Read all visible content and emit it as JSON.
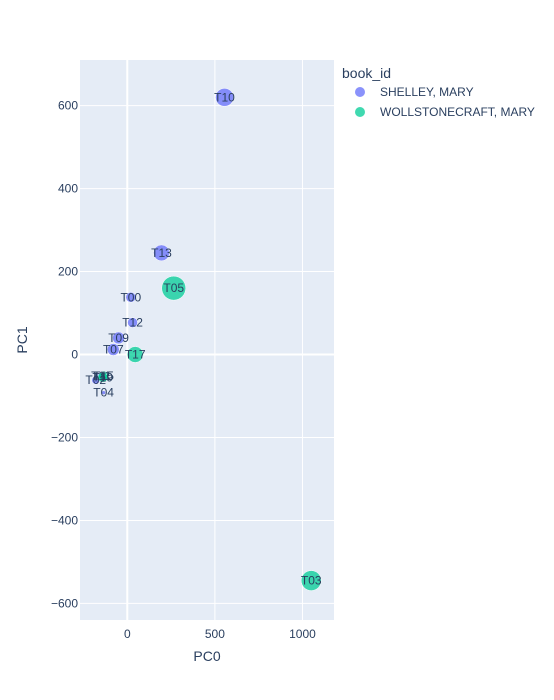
{
  "chart_data": {
    "type": "scatter",
    "xlabel": "PC0",
    "ylabel": "PC1",
    "xlim": [
      -270,
      1180
    ],
    "ylim": [
      -640,
      710
    ],
    "xticks": [
      0,
      500,
      1000
    ],
    "yticks": [
      -600,
      -400,
      -200,
      0,
      200,
      400,
      600
    ],
    "xtick_labels": [
      "0",
      "500",
      "1000"
    ],
    "ytick_labels": [
      "−600",
      "−400",
      "−200",
      "0",
      "200",
      "400",
      "600"
    ],
    "legend": {
      "title": "book_id",
      "placement": "top-right"
    },
    "series": [
      {
        "name": "SHELLEY, MARY",
        "color": "#636efa",
        "points": [
          {
            "label": "T10",
            "x": 555,
            "y": 620,
            "size": 18
          },
          {
            "label": "T13",
            "x": 195,
            "y": 245,
            "size": 16
          },
          {
            "label": "T00",
            "x": 20,
            "y": 138,
            "size": 10
          },
          {
            "label": "T12",
            "x": 30,
            "y": 77,
            "size": 10
          },
          {
            "label": "T09",
            "x": -50,
            "y": 40,
            "size": 12
          },
          {
            "label": "T07",
            "x": -80,
            "y": 12,
            "size": 12
          },
          {
            "label": "T11",
            "x": -150,
            "y": -52,
            "size": 8
          },
          {
            "label": "T02",
            "x": -180,
            "y": -62,
            "size": 8
          },
          {
            "label": "T04",
            "x": -135,
            "y": -92,
            "size": 4
          }
        ]
      },
      {
        "name": "WOLLSTONECRAFT, MARY",
        "color": "#00cc96",
        "points": [
          {
            "label": "T05",
            "x": 265,
            "y": 160,
            "size": 24
          },
          {
            "label": "T17",
            "x": 45,
            "y": 0,
            "size": 16
          },
          {
            "label": "T15",
            "x": -135,
            "y": -52,
            "size": 10
          },
          {
            "label": "T19",
            "x": -140,
            "y": -55,
            "size": 10
          },
          {
            "label": "T03",
            "x": 1050,
            "y": -545,
            "size": 20
          }
        ]
      }
    ]
  }
}
